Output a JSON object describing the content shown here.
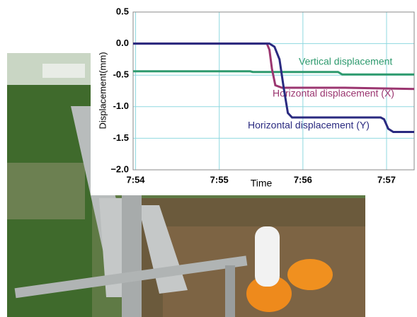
{
  "chart_data": {
    "type": "line",
    "x_label": "Time",
    "y_label": "Displacement(mm)",
    "xlim": [
      473.97,
      477.33
    ],
    "ylim": [
      -2.0,
      0.5
    ],
    "xticks": [
      {
        "value": 474,
        "label": "7:54"
      },
      {
        "value": 475,
        "label": "7:55"
      },
      {
        "value": 476,
        "label": "7:56"
      },
      {
        "value": 477,
        "label": "7:57"
      }
    ],
    "yticks": [
      {
        "value": 0.5,
        "label": "0.5"
      },
      {
        "value": 0.0,
        "label": "0.0"
      },
      {
        "value": -0.5,
        "label": "-0.5"
      },
      {
        "value": -1.0,
        "label": "-1.0"
      },
      {
        "value": -1.5,
        "label": "-1.5"
      },
      {
        "value": -2.0,
        "label": "−2.0"
      }
    ],
    "grid": true,
    "series": [
      {
        "name": "Vertical displacement",
        "color": "#2e9a6e",
        "x": [
          473.97,
          475.37,
          475.4,
          476.42,
          476.47,
          477.33
        ],
        "values": [
          -0.44,
          -0.44,
          -0.45,
          -0.45,
          -0.49,
          -0.49
        ]
      },
      {
        "name": "Horizontal displacement (X)",
        "color": "#9b3670",
        "x": [
          473.97,
          475.57,
          475.6,
          475.63,
          475.67,
          475.75,
          476.5,
          477.33
        ],
        "values": [
          0.0,
          0.0,
          -0.1,
          -0.4,
          -0.66,
          -0.7,
          -0.7,
          -0.72
        ]
      },
      {
        "name": "Horizontal displacement (Y)",
        "color": "#2a2a80",
        "x": [
          473.97,
          475.6,
          475.66,
          475.72,
          475.77,
          475.82,
          475.87,
          476.93,
          476.97,
          477.02,
          477.08,
          477.33
        ],
        "values": [
          0.0,
          0.0,
          -0.05,
          -0.25,
          -0.7,
          -1.1,
          -1.17,
          -1.17,
          -1.2,
          -1.35,
          -1.4,
          -1.4
        ]
      }
    ]
  }
}
